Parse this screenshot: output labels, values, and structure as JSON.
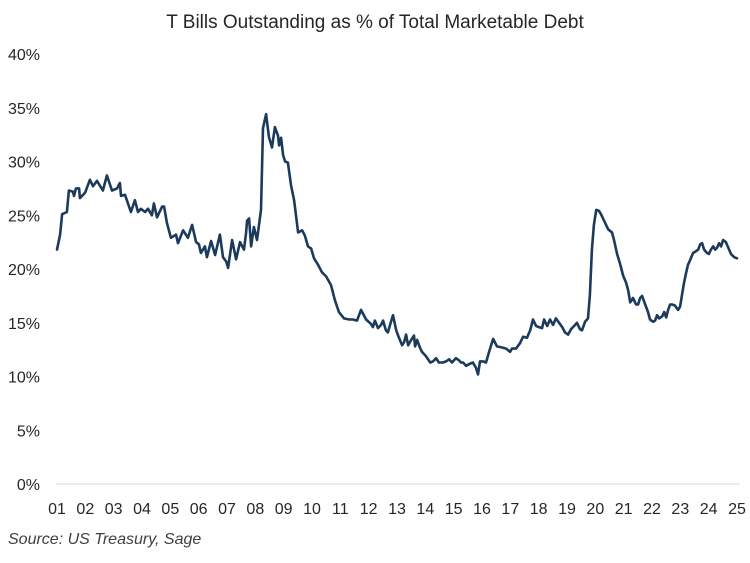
{
  "chart_data": {
    "type": "line",
    "title": "T Bills Outstanding as % of Total Marketable Debt",
    "xlabel": "",
    "ylabel": "",
    "ylim": [
      0,
      40
    ],
    "xlim": [
      2001,
      2025
    ],
    "y_ticks": [
      {
        "value": 0,
        "label": "0%"
      },
      {
        "value": 5,
        "label": "5%"
      },
      {
        "value": 10,
        "label": "10%"
      },
      {
        "value": 15,
        "label": "15%"
      },
      {
        "value": 20,
        "label": "20%"
      },
      {
        "value": 25,
        "label": "25%"
      },
      {
        "value": 30,
        "label": "30%"
      },
      {
        "value": 35,
        "label": "35%"
      },
      {
        "value": 40,
        "label": "40%"
      }
    ],
    "x_ticks": [
      {
        "value": 2001,
        "label": "01"
      },
      {
        "value": 2002,
        "label": "02"
      },
      {
        "value": 2003,
        "label": "03"
      },
      {
        "value": 2004,
        "label": "04"
      },
      {
        "value": 2005,
        "label": "05"
      },
      {
        "value": 2006,
        "label": "06"
      },
      {
        "value": 2007,
        "label": "07"
      },
      {
        "value": 2008,
        "label": "08"
      },
      {
        "value": 2009,
        "label": "09"
      },
      {
        "value": 2010,
        "label": "10"
      },
      {
        "value": 2011,
        "label": "11"
      },
      {
        "value": 2012,
        "label": "12"
      },
      {
        "value": 2013,
        "label": "13"
      },
      {
        "value": 2014,
        "label": "14"
      },
      {
        "value": 2015,
        "label": "15"
      },
      {
        "value": 2016,
        "label": "16"
      },
      {
        "value": 2017,
        "label": "17"
      },
      {
        "value": 2018,
        "label": "18"
      },
      {
        "value": 2019,
        "label": "19"
      },
      {
        "value": 2020,
        "label": "20"
      },
      {
        "value": 2021,
        "label": "21"
      },
      {
        "value": 2022,
        "label": "22"
      },
      {
        "value": 2023,
        "label": "23"
      },
      {
        "value": 2024,
        "label": "24"
      },
      {
        "value": 2025,
        "label": "25"
      }
    ],
    "grid": false,
    "legend": "none",
    "line_color": "#1b3a5c",
    "baseline_color": "#d9d9d9",
    "series": [
      {
        "name": "T Bills % of Total Marketable Debt",
        "points": [
          [
            2001.0,
            21.8
          ],
          [
            2001.11,
            23.2
          ],
          [
            2001.18,
            25.1
          ],
          [
            2001.35,
            25.3
          ],
          [
            2001.42,
            27.3
          ],
          [
            2001.56,
            27.2
          ],
          [
            2001.6,
            26.8
          ],
          [
            2001.67,
            27.5
          ],
          [
            2001.78,
            27.5
          ],
          [
            2001.81,
            26.6
          ],
          [
            2001.99,
            27.1
          ],
          [
            2002.16,
            28.3
          ],
          [
            2002.27,
            27.7
          ],
          [
            2002.41,
            28.2
          ],
          [
            2002.62,
            27.3
          ],
          [
            2002.76,
            28.7
          ],
          [
            2002.94,
            27.3
          ],
          [
            2003.12,
            27.5
          ],
          [
            2003.22,
            28.0
          ],
          [
            2003.26,
            26.8
          ],
          [
            2003.4,
            26.9
          ],
          [
            2003.61,
            25.3
          ],
          [
            2003.75,
            26.4
          ],
          [
            2003.86,
            25.3
          ],
          [
            2003.96,
            25.6
          ],
          [
            2004.11,
            25.3
          ],
          [
            2004.21,
            25.6
          ],
          [
            2004.35,
            25.0
          ],
          [
            2004.42,
            26.1
          ],
          [
            2004.53,
            24.8
          ],
          [
            2004.71,
            25.8
          ],
          [
            2004.78,
            25.8
          ],
          [
            2004.88,
            24.3
          ],
          [
            2005.02,
            22.9
          ],
          [
            2005.2,
            23.2
          ],
          [
            2005.27,
            22.4
          ],
          [
            2005.45,
            23.6
          ],
          [
            2005.62,
            22.9
          ],
          [
            2005.77,
            24.1
          ],
          [
            2005.91,
            22.5
          ],
          [
            2006.01,
            22.3
          ],
          [
            2006.08,
            21.5
          ],
          [
            2006.22,
            22.1
          ],
          [
            2006.29,
            21.1
          ],
          [
            2006.44,
            22.6
          ],
          [
            2006.58,
            21.3
          ],
          [
            2006.75,
            23.2
          ],
          [
            2006.86,
            21.1
          ],
          [
            2006.97,
            20.7
          ],
          [
            2007.04,
            20.1
          ],
          [
            2007.18,
            22.7
          ],
          [
            2007.32,
            20.9
          ],
          [
            2007.46,
            22.5
          ],
          [
            2007.6,
            21.8
          ],
          [
            2007.67,
            23.3
          ],
          [
            2007.71,
            24.5
          ],
          [
            2007.78,
            24.7
          ],
          [
            2007.85,
            22.1
          ],
          [
            2007.95,
            23.9
          ],
          [
            2008.06,
            22.7
          ],
          [
            2008.2,
            25.5
          ],
          [
            2008.27,
            33.1
          ],
          [
            2008.38,
            34.4
          ],
          [
            2008.48,
            32.3
          ],
          [
            2008.59,
            31.3
          ],
          [
            2008.69,
            33.2
          ],
          [
            2008.8,
            32.4
          ],
          [
            2008.84,
            31.5
          ],
          [
            2008.91,
            32.2
          ],
          [
            2008.98,
            30.6
          ],
          [
            2009.05,
            30.0
          ],
          [
            2009.15,
            29.9
          ],
          [
            2009.26,
            27.8
          ],
          [
            2009.37,
            26.4
          ],
          [
            2009.51,
            23.4
          ],
          [
            2009.65,
            23.6
          ],
          [
            2009.75,
            23.1
          ],
          [
            2009.86,
            22.1
          ],
          [
            2009.97,
            21.9
          ],
          [
            2010.07,
            21.0
          ],
          [
            2010.21,
            20.4
          ],
          [
            2010.35,
            19.7
          ],
          [
            2010.5,
            19.3
          ],
          [
            2010.67,
            18.5
          ],
          [
            2010.81,
            17.1
          ],
          [
            2010.95,
            16.0
          ],
          [
            2011.13,
            15.4
          ],
          [
            2011.31,
            15.3
          ],
          [
            2011.45,
            15.3
          ],
          [
            2011.59,
            15.2
          ],
          [
            2011.73,
            16.2
          ],
          [
            2011.91,
            15.3
          ],
          [
            2012.08,
            14.9
          ],
          [
            2012.15,
            14.6
          ],
          [
            2012.22,
            15.2
          ],
          [
            2012.33,
            14.5
          ],
          [
            2012.44,
            14.8
          ],
          [
            2012.51,
            15.2
          ],
          [
            2012.61,
            14.3
          ],
          [
            2012.68,
            14.1
          ],
          [
            2012.79,
            15.1
          ],
          [
            2012.86,
            15.7
          ],
          [
            2012.97,
            14.3
          ],
          [
            2013.07,
            13.6
          ],
          [
            2013.18,
            12.9
          ],
          [
            2013.25,
            13.2
          ],
          [
            2013.32,
            13.9
          ],
          [
            2013.39,
            12.9
          ],
          [
            2013.5,
            13.4
          ],
          [
            2013.6,
            13.8
          ],
          [
            2013.64,
            12.8
          ],
          [
            2013.71,
            13.4
          ],
          [
            2013.81,
            12.7
          ],
          [
            2013.88,
            12.3
          ],
          [
            2014.02,
            11.9
          ],
          [
            2014.17,
            11.3
          ],
          [
            2014.27,
            11.4
          ],
          [
            2014.38,
            11.7
          ],
          [
            2014.48,
            11.3
          ],
          [
            2014.62,
            11.3
          ],
          [
            2014.73,
            11.4
          ],
          [
            2014.84,
            11.6
          ],
          [
            2014.94,
            11.3
          ],
          [
            2015.01,
            11.5
          ],
          [
            2015.08,
            11.7
          ],
          [
            2015.19,
            11.5
          ],
          [
            2015.26,
            11.3
          ],
          [
            2015.33,
            11.3
          ],
          [
            2015.44,
            11.0
          ],
          [
            2015.51,
            11.1
          ],
          [
            2015.58,
            11.2
          ],
          [
            2015.68,
            11.3
          ],
          [
            2015.79,
            10.8
          ],
          [
            2015.86,
            10.2
          ],
          [
            2015.93,
            11.4
          ],
          [
            2016.04,
            11.4
          ],
          [
            2016.14,
            11.3
          ],
          [
            2016.25,
            12.3
          ],
          [
            2016.39,
            13.5
          ],
          [
            2016.53,
            12.8
          ],
          [
            2016.71,
            12.7
          ],
          [
            2016.85,
            12.6
          ],
          [
            2016.99,
            12.3
          ],
          [
            2017.06,
            12.6
          ],
          [
            2017.2,
            12.6
          ],
          [
            2017.34,
            13.1
          ],
          [
            2017.45,
            13.7
          ],
          [
            2017.59,
            13.6
          ],
          [
            2017.7,
            14.3
          ],
          [
            2017.8,
            15.3
          ],
          [
            2017.91,
            14.7
          ],
          [
            2018.01,
            14.6
          ],
          [
            2018.12,
            14.5
          ],
          [
            2018.19,
            15.3
          ],
          [
            2018.3,
            14.7
          ],
          [
            2018.4,
            15.3
          ],
          [
            2018.51,
            14.8
          ],
          [
            2018.61,
            15.4
          ],
          [
            2018.72,
            15.0
          ],
          [
            2018.83,
            14.6
          ],
          [
            2018.93,
            14.1
          ],
          [
            2019.04,
            13.9
          ],
          [
            2019.14,
            14.4
          ],
          [
            2019.25,
            14.7
          ],
          [
            2019.35,
            15.0
          ],
          [
            2019.46,
            14.4
          ],
          [
            2019.53,
            14.3
          ],
          [
            2019.64,
            15.1
          ],
          [
            2019.74,
            15.4
          ],
          [
            2019.81,
            17.6
          ],
          [
            2019.88,
            21.8
          ],
          [
            2019.95,
            24.1
          ],
          [
            2020.03,
            25.5
          ],
          [
            2020.13,
            25.4
          ],
          [
            2020.2,
            25.1
          ],
          [
            2020.27,
            24.7
          ],
          [
            2020.38,
            24.1
          ],
          [
            2020.45,
            23.7
          ],
          [
            2020.59,
            23.4
          ],
          [
            2020.66,
            22.7
          ],
          [
            2020.77,
            21.4
          ],
          [
            2020.87,
            20.5
          ],
          [
            2020.98,
            19.4
          ],
          [
            2021.09,
            18.7
          ],
          [
            2021.16,
            18.0
          ],
          [
            2021.23,
            16.9
          ],
          [
            2021.33,
            17.3
          ],
          [
            2021.44,
            16.7
          ],
          [
            2021.51,
            16.7
          ],
          [
            2021.58,
            17.3
          ],
          [
            2021.65,
            17.5
          ],
          [
            2021.76,
            16.7
          ],
          [
            2021.86,
            16.0
          ],
          [
            2021.93,
            15.3
          ],
          [
            2022.04,
            15.1
          ],
          [
            2022.11,
            15.2
          ],
          [
            2022.18,
            15.7
          ],
          [
            2022.25,
            15.4
          ],
          [
            2022.36,
            15.6
          ],
          [
            2022.43,
            16.0
          ],
          [
            2022.5,
            15.5
          ],
          [
            2022.57,
            16.2
          ],
          [
            2022.64,
            16.7
          ],
          [
            2022.71,
            16.7
          ],
          [
            2022.81,
            16.6
          ],
          [
            2022.92,
            16.2
          ],
          [
            2022.99,
            16.5
          ],
          [
            2023.06,
            17.6
          ],
          [
            2023.13,
            18.7
          ],
          [
            2023.2,
            19.6
          ],
          [
            2023.27,
            20.4
          ],
          [
            2023.34,
            20.8
          ],
          [
            2023.45,
            21.5
          ],
          [
            2023.52,
            21.6
          ],
          [
            2023.63,
            21.8
          ],
          [
            2023.7,
            22.3
          ],
          [
            2023.77,
            22.4
          ],
          [
            2023.84,
            21.8
          ],
          [
            2023.94,
            21.5
          ],
          [
            2024.01,
            21.4
          ],
          [
            2024.08,
            21.8
          ],
          [
            2024.16,
            22.1
          ],
          [
            2024.23,
            21.8
          ],
          [
            2024.3,
            22.0
          ],
          [
            2024.37,
            22.4
          ],
          [
            2024.44,
            22.1
          ],
          [
            2024.51,
            22.7
          ],
          [
            2024.61,
            22.5
          ],
          [
            2024.69,
            22.0
          ],
          [
            2024.79,
            21.4
          ],
          [
            2024.9,
            21.1
          ],
          [
            2025.0,
            21.0
          ]
        ]
      }
    ]
  },
  "footer": {
    "source": "Source: US Treasury, Sage"
  }
}
